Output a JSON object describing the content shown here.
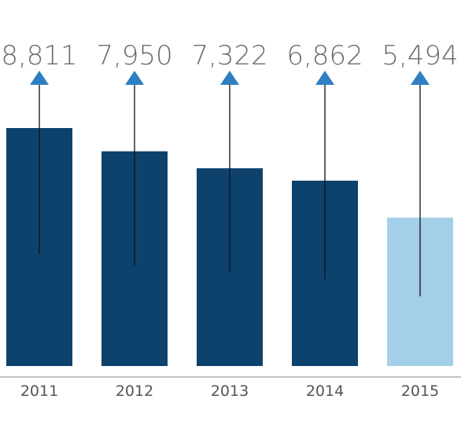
{
  "chart_data": {
    "type": "bar",
    "categories": [
      "2011",
      "2012",
      "2013",
      "2014",
      "2015"
    ],
    "values": [
      8811,
      7950,
      7322,
      6862,
      5494
    ],
    "value_labels": [
      "8,811",
      "7,950",
      "7,322",
      "6,862",
      "5,494"
    ],
    "ylim": [
      0,
      9000
    ],
    "grid": false,
    "legend": "none",
    "colors": {
      "bar": "#0d426d",
      "bar_highlight": "#a4cfe9",
      "arrow": "#2e7fc1",
      "leader_line": "#111111",
      "axis": "#888888"
    },
    "highlight_index": 4
  }
}
